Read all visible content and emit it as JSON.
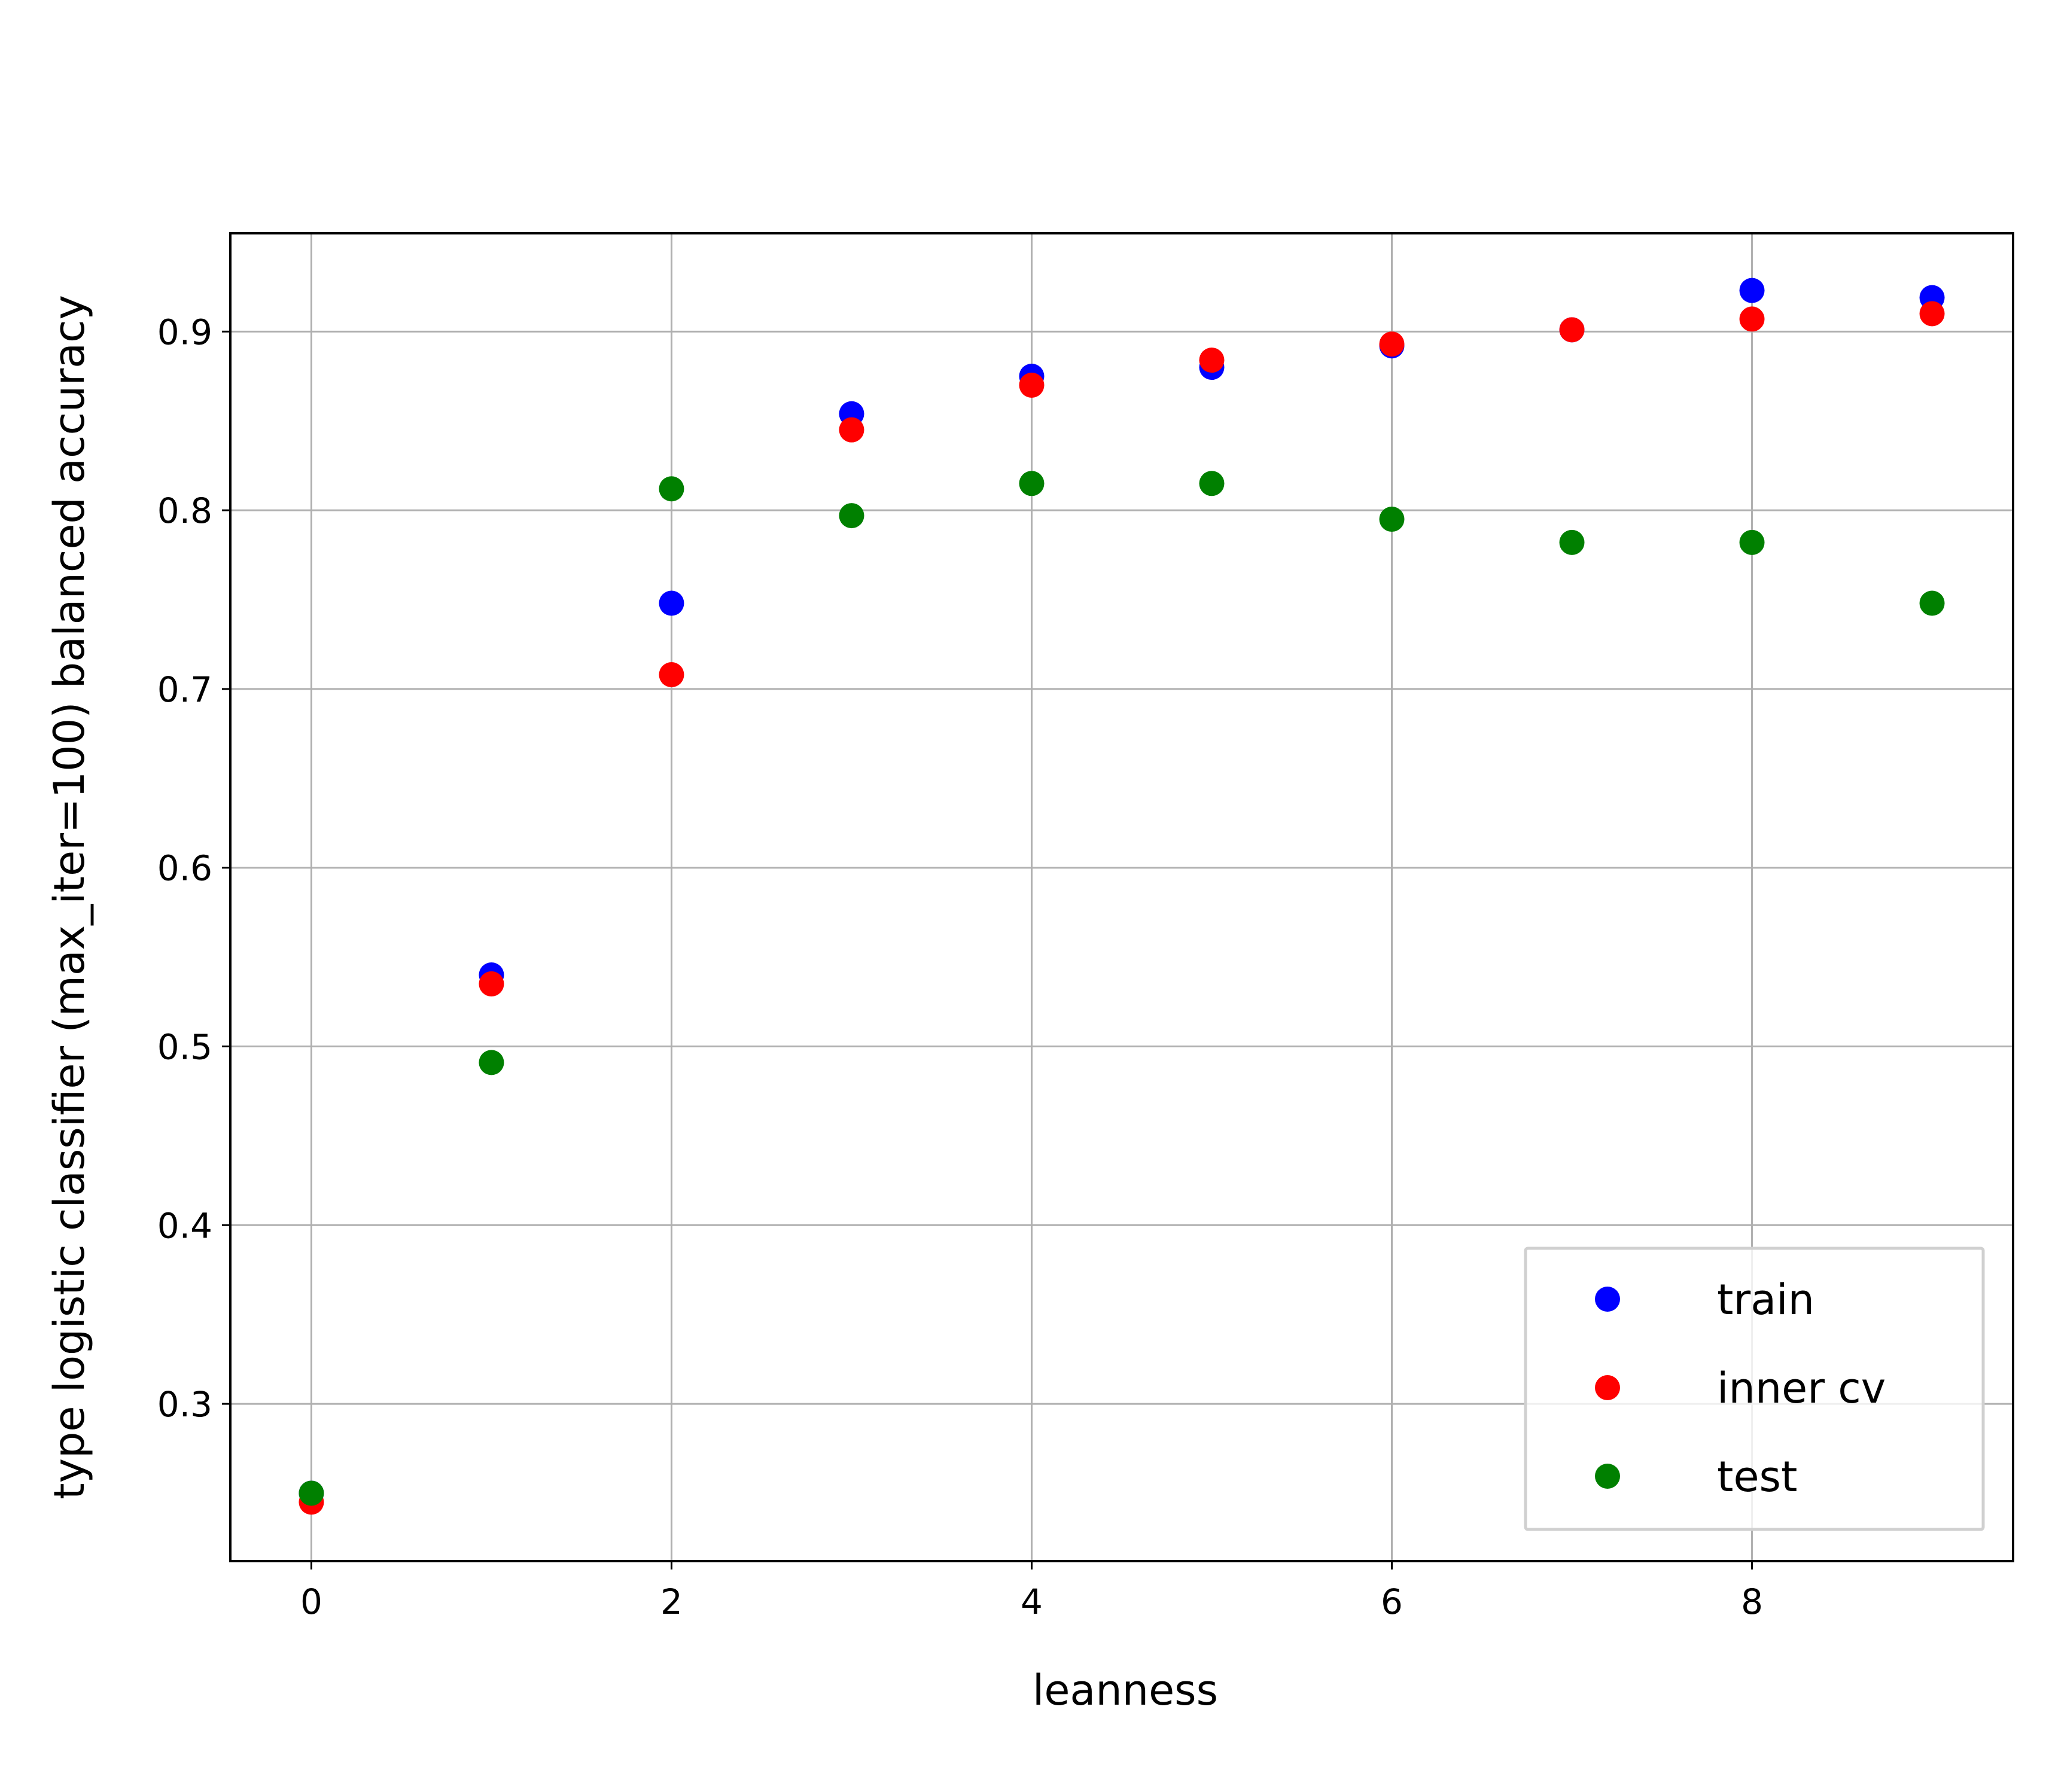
{
  "chart_data": {
    "type": "scatter",
    "xlabel": "leanness",
    "ylabel": "type logistic classifier (max_iter=100) balanced accuracy",
    "xlim": [
      -0.45,
      9.45
    ],
    "ylim": [
      0.212,
      0.955
    ],
    "xticks": [
      0,
      2,
      4,
      6,
      8
    ],
    "xtick_labels": [
      "0",
      "2",
      "4",
      "6",
      "8"
    ],
    "yticks": [
      0.3,
      0.4,
      0.5,
      0.6,
      0.7,
      0.8,
      0.9
    ],
    "ytick_labels": [
      "0.3",
      "0.4",
      "0.5",
      "0.6",
      "0.7",
      "0.8",
      "0.9"
    ],
    "grid": true,
    "legend_position": "lower-right",
    "series": [
      {
        "name": "train",
        "color": "#0000ff",
        "x": [
          0,
          1,
          2,
          3,
          4,
          5,
          6,
          7,
          8,
          9
        ],
        "y": [
          0.25,
          0.54,
          0.748,
          0.854,
          0.875,
          0.88,
          0.892,
          0.901,
          0.923,
          0.919
        ]
      },
      {
        "name": "inner cv",
        "color": "#ff0000",
        "x": [
          0,
          1,
          2,
          3,
          4,
          5,
          6,
          7,
          8,
          9
        ],
        "y": [
          0.245,
          0.535,
          0.708,
          0.845,
          0.87,
          0.884,
          0.893,
          0.901,
          0.907,
          0.91
        ]
      },
      {
        "name": "test",
        "color": "#008000",
        "x": [
          0,
          1,
          2,
          3,
          4,
          5,
          6,
          7,
          8,
          9
        ],
        "y": [
          0.25,
          0.491,
          0.812,
          0.797,
          0.815,
          0.815,
          0.795,
          0.782,
          0.782,
          0.748
        ]
      }
    ]
  }
}
